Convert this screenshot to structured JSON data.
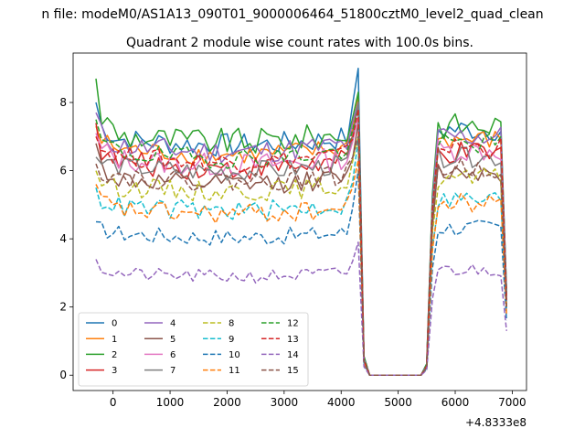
{
  "figure": {
    "suptitle": "n file: modeM0/AS1A13_090T01_9000006464_51800cztM0_level2_quad_clean",
    "title": "Quadrant 2 module wise count rates with 100.0s bins."
  },
  "chart_data": {
    "type": "line",
    "title": "Quadrant 2 module wise count rates with 100.0s bins.",
    "xlabel": "",
    "ylabel": "",
    "x_offset_label": "+4.8333e8",
    "xlim": [
      -700,
      7250
    ],
    "ylim": [
      -0.45,
      9.45
    ],
    "x_ticks": [
      0,
      1000,
      2000,
      3000,
      4000,
      5000,
      6000,
      7000
    ],
    "x_tick_labels": [
      "0",
      "1000",
      "2000",
      "3000",
      "4000",
      "5000",
      "6000",
      "7000"
    ],
    "y_ticks": [
      0,
      2,
      4,
      6,
      8
    ],
    "y_tick_labels": [
      "0",
      "2",
      "4",
      "6",
      "8"
    ],
    "grid": false,
    "legend_placement": "lower-left",
    "segments": [
      {
        "x_start": -300,
        "x_end": 4300,
        "step": 100
      },
      {
        "x_values": [
          4400,
          4500,
          4600,
          4700,
          4800,
          4900,
          5000,
          5100,
          5200,
          5300,
          5400
        ]
      },
      {
        "x_start": 5500,
        "x_end": 6900,
        "step": 100
      }
    ],
    "series": [
      {
        "name": "0",
        "color": "#1f77b4",
        "dash": "solid",
        "level": 7.0,
        "amp": 0.35,
        "start": 8.0,
        "peak": 9.0,
        "edge": 0.55,
        "end": 2.5
      },
      {
        "name": "1",
        "color": "#ff7f0e",
        "dash": "solid",
        "level": 6.7,
        "amp": 0.3,
        "start": 7.3,
        "peak": 8.2,
        "edge": 0.45,
        "end": 2.2
      },
      {
        "name": "2",
        "color": "#2ca02c",
        "dash": "solid",
        "level": 7.1,
        "amp": 0.4,
        "start": 8.7,
        "peak": 8.3,
        "edge": 0.55,
        "end": 2.4
      },
      {
        "name": "3",
        "color": "#d62728",
        "dash": "solid",
        "level": 6.3,
        "amp": 0.35,
        "start": 7.4,
        "peak": 8.0,
        "edge": 0.45,
        "end": 2.2
      },
      {
        "name": "4",
        "color": "#9467bd",
        "dash": "solid",
        "level": 6.8,
        "amp": 0.35,
        "start": 7.7,
        "peak": 8.0,
        "edge": 0.5,
        "end": 2.3
      },
      {
        "name": "5",
        "color": "#8c564b",
        "dash": "solid",
        "level": 5.8,
        "amp": 0.3,
        "start": 6.8,
        "peak": 7.4,
        "edge": 0.4,
        "end": 2.0
      },
      {
        "name": "6",
        "color": "#e377c2",
        "dash": "solid",
        "level": 6.4,
        "amp": 0.35,
        "start": 7.1,
        "peak": 7.6,
        "edge": 0.45,
        "end": 2.1
      },
      {
        "name": "7",
        "color": "#7f7f7f",
        "dash": "solid",
        "level": 6.2,
        "amp": 0.3,
        "start": 6.4,
        "peak": 8.0,
        "edge": 0.45,
        "end": 2.1
      },
      {
        "name": "8",
        "color": "#bcbd22",
        "dash": "dashed",
        "level": 5.6,
        "amp": 0.3,
        "start": 6.0,
        "peak": 7.0,
        "edge": 0.4,
        "end": 2.0
      },
      {
        "name": "9",
        "color": "#17becf",
        "dash": "dashed",
        "level": 5.0,
        "amp": 0.3,
        "start": 5.5,
        "peak": 6.9,
        "edge": 0.35,
        "end": 1.9
      },
      {
        "name": "10",
        "color": "#1f77b4",
        "dash": "dashed",
        "level": 4.2,
        "amp": 0.25,
        "start": 4.5,
        "peak": 6.0,
        "edge": 0.3,
        "end": 1.6
      },
      {
        "name": "11",
        "color": "#ff7f0e",
        "dash": "dashed",
        "level": 4.9,
        "amp": 0.3,
        "start": 5.6,
        "peak": 6.3,
        "edge": 0.35,
        "end": 1.8
      },
      {
        "name": "12",
        "color": "#2ca02c",
        "dash": "dashed",
        "level": 6.6,
        "amp": 0.3,
        "start": 7.5,
        "peak": 7.8,
        "edge": 0.5,
        "end": 2.2
      },
      {
        "name": "13",
        "color": "#d62728",
        "dash": "dashed",
        "level": 6.5,
        "amp": 0.3,
        "start": 7.0,
        "peak": 7.8,
        "edge": 0.45,
        "end": 2.2
      },
      {
        "name": "14",
        "color": "#9467bd",
        "dash": "dashed",
        "level": 3.0,
        "amp": 0.2,
        "start": 3.4,
        "peak": 3.9,
        "edge": 0.25,
        "end": 1.3
      },
      {
        "name": "15",
        "color": "#8c564b",
        "dash": "dashed",
        "level": 5.9,
        "amp": 0.3,
        "start": 6.2,
        "peak": 7.0,
        "edge": 0.4,
        "end": 2.0
      }
    ]
  }
}
